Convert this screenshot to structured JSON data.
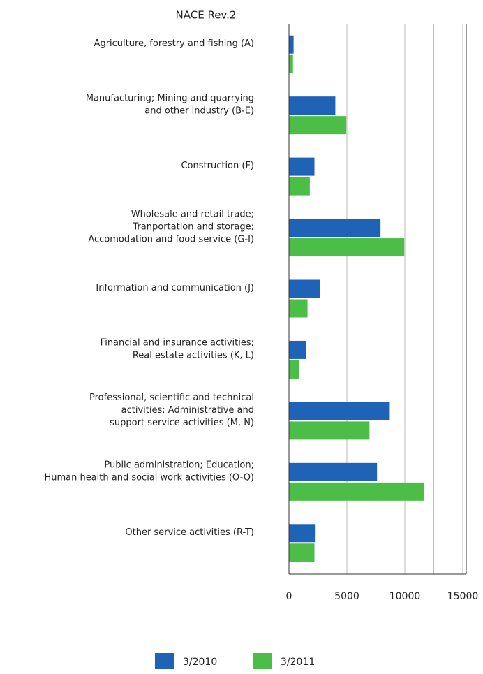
{
  "chart_data": {
    "type": "hbar",
    "title": "NACE Rev.2",
    "categories": [
      [
        "Agriculture, forestry and fishing (A)"
      ],
      [
        "Manufacturing; Mining and quarrying",
        "and other industry (B-E)"
      ],
      [
        "Construction (F)"
      ],
      [
        "Wholesale and retail trade;",
        "Tranportation and storage;",
        "Accomodation and food service (G-I)"
      ],
      [
        "Information and communication (J)"
      ],
      [
        "Financial and insurance activities;",
        "Real estate activities (K, L)"
      ],
      [
        "Professional, scientific and technical",
        "activities; Administrative and",
        "support service activities (M, N)"
      ],
      [
        "Public administration; Education;",
        "Human health and social work activities (O-Q)"
      ],
      [
        "Other service activities (R-T)"
      ]
    ],
    "series": [
      {
        "name": "3/2010",
        "color": "#1f63b6",
        "values": [
          400,
          4000,
          2200,
          7900,
          2700,
          1500,
          8700,
          7600,
          2300
        ]
      },
      {
        "name": "3/2011",
        "color": "#4cbe47",
        "values": [
          350,
          4950,
          1800,
          9950,
          1600,
          850,
          6950,
          11650,
          2200
        ]
      }
    ],
    "xlim": [
      0,
      15300
    ],
    "xticks": [
      0,
      5000,
      10000,
      15000
    ],
    "minor_xticks": [
      2500,
      7500,
      12500
    ],
    "grid": true,
    "legend": "bottom"
  }
}
